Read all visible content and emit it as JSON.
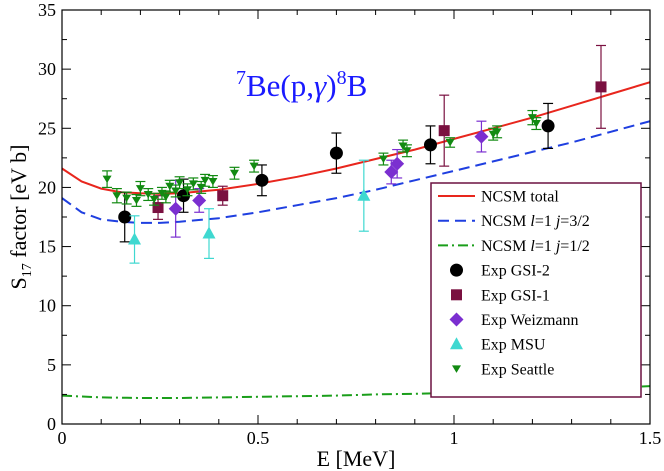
{
  "chart_data": {
    "type": "scatter",
    "title": {
      "mass_a": "7",
      "element_a": "Be(p,",
      "gamma": "γ",
      "close": ")",
      "mass_b": "8",
      "element_b": "B"
    },
    "xlabel": "E [MeV]",
    "ylabel_main": "S",
    "ylabel_sub": "17",
    "ylabel_rest": " factor [eV b]",
    "xlim": [
      0,
      1.5
    ],
    "ylim": [
      0,
      35
    ],
    "xticks": [
      {
        "value": 0,
        "label": "0"
      },
      {
        "value": 0.5,
        "label": "0.5"
      },
      {
        "value": 1,
        "label": "1"
      },
      {
        "value": 1.5,
        "label": "1.5"
      }
    ],
    "yticks": [
      {
        "value": 0,
        "label": "0"
      },
      {
        "value": 5,
        "label": "5"
      },
      {
        "value": 10,
        "label": "10"
      },
      {
        "value": 15,
        "label": "15"
      },
      {
        "value": 20,
        "label": "20"
      },
      {
        "value": 25,
        "label": "25"
      },
      {
        "value": 30,
        "label": "30"
      },
      {
        "value": 35,
        "label": "35"
      }
    ],
    "legend_position": "lower-right",
    "series": [
      {
        "name": "NCSM total",
        "label_parts": [
          "NCSM total"
        ],
        "kind": "line",
        "color": "#e8261d",
        "dash": "solid",
        "x": [
          0,
          0.05,
          0.1,
          0.15,
          0.2,
          0.25,
          0.3,
          0.4,
          0.5,
          0.6,
          0.7,
          0.8,
          0.9,
          1.0,
          1.1,
          1.2,
          1.3,
          1.4,
          1.5
        ],
        "y": [
          21.6,
          20.5,
          19.9,
          19.6,
          19.5,
          19.45,
          19.5,
          19.8,
          20.3,
          20.9,
          21.6,
          22.4,
          23.2,
          24.1,
          25.0,
          25.9,
          26.9,
          27.9,
          28.9
        ]
      },
      {
        "name": "NCSM l=1 j=3/2",
        "label_parts": [
          "NCSM ",
          "l",
          "=1 ",
          "j",
          "=3/2"
        ],
        "kind": "line",
        "color": "#1f3fe0",
        "dash": "dashed",
        "x": [
          0,
          0.05,
          0.1,
          0.15,
          0.2,
          0.25,
          0.3,
          0.4,
          0.5,
          0.6,
          0.7,
          0.8,
          0.9,
          1.0,
          1.1,
          1.2,
          1.3,
          1.4,
          1.5
        ],
        "y": [
          19.1,
          17.9,
          17.3,
          17.1,
          17.0,
          17.0,
          17.1,
          17.4,
          17.9,
          18.5,
          19.1,
          19.8,
          20.6,
          21.4,
          22.2,
          23.0,
          23.8,
          24.7,
          25.6
        ]
      },
      {
        "name": "NCSM l=1 j=1/2",
        "label_parts": [
          "NCSM ",
          "l",
          "=1 ",
          "j",
          "=1/2"
        ],
        "kind": "line",
        "color": "#1a9e1a",
        "dash": "dashdot",
        "x": [
          0,
          0.1,
          0.2,
          0.3,
          0.4,
          0.5,
          0.6,
          0.7,
          0.8,
          0.9,
          1.0,
          1.1,
          1.2,
          1.3,
          1.4,
          1.5
        ],
        "y": [
          2.4,
          2.25,
          2.2,
          2.2,
          2.25,
          2.3,
          2.35,
          2.4,
          2.5,
          2.55,
          2.65,
          2.75,
          2.85,
          2.95,
          3.05,
          3.2
        ]
      },
      {
        "name": "Exp GSI-2",
        "label_parts": [
          "Exp GSI-2"
        ],
        "kind": "points",
        "marker": "circle",
        "color": "#000000",
        "points": [
          {
            "x": 0.16,
            "y": 17.5,
            "err": 2.1
          },
          {
            "x": 0.31,
            "y": 19.3,
            "err": 1.4
          },
          {
            "x": 0.51,
            "y": 20.6,
            "err": 1.3
          },
          {
            "x": 0.7,
            "y": 22.9,
            "err": 1.7
          },
          {
            "x": 0.94,
            "y": 23.6,
            "err": 1.6
          },
          {
            "x": 1.24,
            "y": 25.2,
            "err": 1.9
          }
        ]
      },
      {
        "name": "Exp GSI-1",
        "label_parts": [
          "Exp GSI-1"
        ],
        "kind": "points",
        "marker": "square",
        "color": "#7a1040",
        "points": [
          {
            "x": 0.245,
            "y": 18.3,
            "err": 1.0
          },
          {
            "x": 0.41,
            "y": 19.3,
            "err": 0.8
          },
          {
            "x": 0.975,
            "y": 24.8,
            "err": 3.0
          },
          {
            "x": 1.375,
            "y": 28.5,
            "err": 3.5
          }
        ]
      },
      {
        "name": "Exp Weizmann",
        "label_parts": [
          "Exp Weizmann"
        ],
        "kind": "points",
        "marker": "diamond",
        "color": "#7b2fd0",
        "points": [
          {
            "x": 0.29,
            "y": 18.2,
            "err": 2.4
          },
          {
            "x": 0.35,
            "y": 18.9,
            "err": 1.0
          },
          {
            "x": 0.84,
            "y": 21.3,
            "err": 1.0
          },
          {
            "x": 0.855,
            "y": 22.0,
            "err": 1.2
          },
          {
            "x": 1.07,
            "y": 24.3,
            "err": 1.3
          }
        ]
      },
      {
        "name": "Exp MSU",
        "label_parts": [
          "Exp MSU"
        ],
        "kind": "points",
        "marker": "triangle-up",
        "color": "#3fd8d0",
        "points": [
          {
            "x": 0.185,
            "y": 15.6,
            "err": 2.0
          },
          {
            "x": 0.375,
            "y": 16.1,
            "err": 2.1
          },
          {
            "x": 0.77,
            "y": 19.3,
            "err": 3.0
          }
        ]
      },
      {
        "name": "Exp Seattle",
        "label_parts": [
          "Exp Seattle"
        ],
        "kind": "points",
        "marker": "triangle-down",
        "color": "#128a12",
        "points": [
          {
            "x": 0.115,
            "y": 20.7,
            "err": 0.7
          },
          {
            "x": 0.14,
            "y": 19.3,
            "err": 0.6
          },
          {
            "x": 0.165,
            "y": 19.1,
            "err": 0.5
          },
          {
            "x": 0.19,
            "y": 18.9,
            "err": 0.5
          },
          {
            "x": 0.2,
            "y": 19.9,
            "err": 0.6
          },
          {
            "x": 0.22,
            "y": 19.4,
            "err": 0.5
          },
          {
            "x": 0.235,
            "y": 19.0,
            "err": 0.5
          },
          {
            "x": 0.255,
            "y": 19.5,
            "err": 0.5
          },
          {
            "x": 0.265,
            "y": 19.2,
            "err": 0.5
          },
          {
            "x": 0.275,
            "y": 20.1,
            "err": 0.5
          },
          {
            "x": 0.29,
            "y": 19.7,
            "err": 0.5
          },
          {
            "x": 0.3,
            "y": 20.4,
            "err": 0.5
          },
          {
            "x": 0.32,
            "y": 19.8,
            "err": 0.5
          },
          {
            "x": 0.335,
            "y": 20.3,
            "err": 0.5
          },
          {
            "x": 0.355,
            "y": 20.0,
            "err": 0.5
          },
          {
            "x": 0.365,
            "y": 20.6,
            "err": 0.5
          },
          {
            "x": 0.385,
            "y": 20.5,
            "err": 0.5
          },
          {
            "x": 0.44,
            "y": 21.2,
            "err": 0.5
          },
          {
            "x": 0.49,
            "y": 21.8,
            "err": 0.5
          },
          {
            "x": 0.82,
            "y": 22.4,
            "err": 0.5
          },
          {
            "x": 0.87,
            "y": 23.5,
            "err": 0.5
          },
          {
            "x": 0.88,
            "y": 23.1,
            "err": 0.5
          },
          {
            "x": 0.99,
            "y": 23.8,
            "err": 0.4
          },
          {
            "x": 1.1,
            "y": 24.5,
            "err": 0.5
          },
          {
            "x": 1.11,
            "y": 24.7,
            "err": 0.5
          },
          {
            "x": 1.2,
            "y": 25.9,
            "err": 0.6
          },
          {
            "x": 1.21,
            "y": 25.4,
            "err": 0.5
          }
        ]
      }
    ]
  }
}
